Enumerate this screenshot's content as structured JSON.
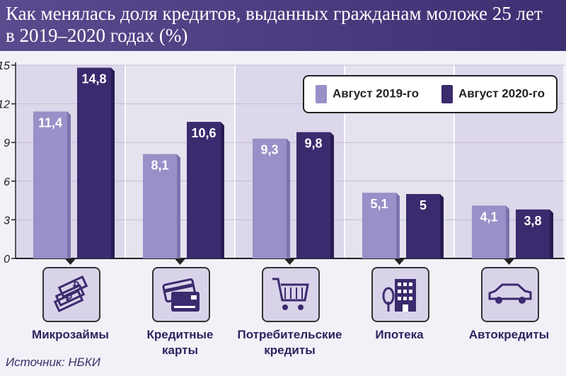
{
  "header": {
    "title_line1": "Как менялась доля кредитов, выданных гражданам моложе 25 лет",
    "title_line2": "в 2019–2020 годах (%)"
  },
  "source": "Источник: НБКИ",
  "colors": {
    "series1": "#9a8fc8",
    "series2": "#3a2b6e",
    "header": "#4a3a80",
    "text": "#2e2360"
  },
  "icons": [
    "money-stack-icon",
    "credit-card-icon",
    "shopping-cart-icon",
    "apartment-building-icon",
    "car-icon"
  ],
  "chart_data": {
    "type": "bar",
    "title": "Как менялась доля кредитов, выданных гражданам моложе 25 лет в 2019–2020 годах (%)",
    "categories": [
      "Микрозаймы",
      "Кредитные карты",
      "Потребительские кредиты",
      "Ипотека",
      "Автокредиты"
    ],
    "category_lines": [
      [
        "Микрозаймы"
      ],
      [
        "Кредитные",
        "карты"
      ],
      [
        "Потребительские",
        "кредиты"
      ],
      [
        "Ипотека"
      ],
      [
        "Автокредиты"
      ]
    ],
    "series": [
      {
        "name": "Август 2019-го",
        "values": [
          11.4,
          8.1,
          9.3,
          5.1,
          4.1
        ],
        "labels": [
          "11,4",
          "8,1",
          "9,3",
          "5,1",
          "4,1"
        ]
      },
      {
        "name": "Август 2020-го",
        "values": [
          14.8,
          10.6,
          9.8,
          5,
          3.8
        ],
        "labels": [
          "14,8",
          "10,6",
          "9,8",
          "5",
          "3,8"
        ]
      }
    ],
    "yticks": [
      0,
      3,
      6,
      9,
      12,
      15
    ],
    "ylim": [
      0,
      15
    ],
    "xlabel": "",
    "ylabel": "",
    "legend": "top-right",
    "grid": true
  }
}
